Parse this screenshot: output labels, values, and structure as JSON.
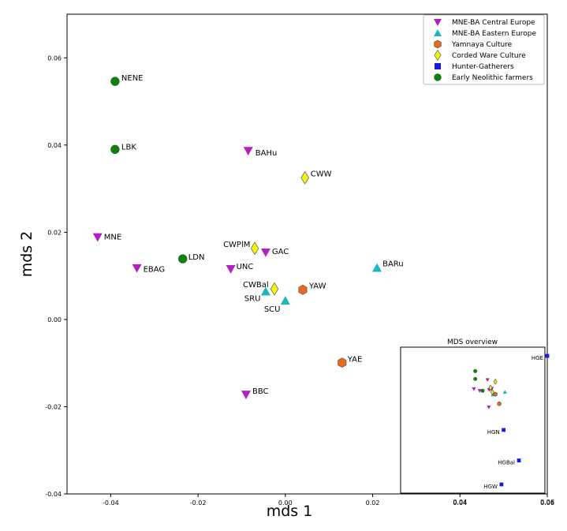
{
  "chart_data": {
    "type": "scatter",
    "xlabel": "mds 1",
    "ylabel": "mds 2",
    "xlim": [
      -0.05,
      0.06
    ],
    "ylim": [
      -0.04,
      0.07
    ],
    "xticks": [
      "-0.04",
      "-0.02",
      "0.00",
      "0.02",
      "0.04",
      "0.06"
    ],
    "xtick_values": [
      -0.04,
      -0.02,
      0.0,
      0.02,
      0.04,
      0.06
    ],
    "yticks": [
      "-0.04",
      "-0.02",
      "0.00",
      "0.02",
      "0.04",
      "0.06"
    ],
    "ytick_values": [
      -0.04,
      -0.02,
      0.0,
      0.02,
      0.04,
      0.06
    ],
    "grid": false,
    "legend_position": "top-right",
    "series": [
      {
        "name": "MNE-BA Central Europe",
        "marker": "triangle-down",
        "color": "#b41fbf",
        "points": [
          {
            "label": "BAHu",
            "x": -0.0085,
            "y": 0.0387
          },
          {
            "label": "MNE",
            "x": -0.043,
            "y": 0.0189
          },
          {
            "label": "EBAG",
            "x": -0.034,
            "y": 0.0118
          },
          {
            "label": "UNC",
            "x": -0.0125,
            "y": 0.0116
          },
          {
            "label": "GAC",
            "x": -0.0045,
            "y": 0.0154
          },
          {
            "label": "BBC",
            "x": -0.009,
            "y": -0.0172
          }
        ]
      },
      {
        "name": "MNE-BA Eastern Europe",
        "marker": "triangle-up",
        "color": "#1bb7bd",
        "points": [
          {
            "label": "BARu",
            "x": 0.021,
            "y": 0.0118
          },
          {
            "label": "SRU",
            "x": -0.0045,
            "y": 0.0064
          },
          {
            "label": "SCU",
            "x": 0.0,
            "y": 0.0043
          }
        ]
      },
      {
        "name": "Yamnaya Culture",
        "marker": "hexagon",
        "color": "#ea6a1a",
        "points": [
          {
            "label": "YAW",
            "x": 0.004,
            "y": 0.0068
          },
          {
            "label": "YAE",
            "x": 0.013,
            "y": -0.0099
          }
        ]
      },
      {
        "name": "Corded Ware Culture",
        "marker": "diamond",
        "color": "#f5f50a",
        "points": [
          {
            "label": "CWW",
            "x": 0.0045,
            "y": 0.0325
          },
          {
            "label": "CWPlM",
            "x": -0.007,
            "y": 0.0163
          },
          {
            "label": "CWBal",
            "x": -0.0025,
            "y": 0.007
          }
        ]
      },
      {
        "name": "Hunter-Gatherers",
        "marker": "square",
        "color": "#1717e6",
        "points": []
      },
      {
        "name": "Early Neolithic farmers",
        "marker": "circle",
        "color": "#137d13",
        "points": [
          {
            "label": "NENE",
            "x": -0.039,
            "y": 0.0546
          },
          {
            "label": "LBK",
            "x": -0.039,
            "y": 0.039
          },
          {
            "label": "LDN",
            "x": -0.0235,
            "y": 0.0139
          }
        ]
      }
    ],
    "inset": {
      "title": "MDS overview",
      "xticks": [
        "0.04",
        "0.06"
      ],
      "xtick_values": [
        0.04,
        0.06
      ],
      "points": [
        {
          "label": "HGE",
          "x": 0.06,
          "y": -0.0085,
          "series": "Hunter-Gatherers"
        },
        {
          "label": "HGN",
          "x": 0.05,
          "y": -0.0255,
          "series": "Hunter-Gatherers"
        },
        {
          "label": "HGBal",
          "x": 0.0535,
          "y": -0.0325,
          "series": "Hunter-Gatherers"
        },
        {
          "label": "HGW",
          "x": 0.0495,
          "y": -0.038,
          "series": "Hunter-Gatherers"
        }
      ],
      "cluster": [
        {
          "x": 0.0435,
          "y": -0.012,
          "series": "Early Neolithic farmers"
        },
        {
          "x": 0.0435,
          "y": -0.0138,
          "series": "Early Neolithic farmers"
        },
        {
          "x": 0.0452,
          "y": -0.0165,
          "series": "Early Neolithic farmers"
        },
        {
          "x": 0.0432,
          "y": -0.0161,
          "series": "MNE-BA Central Europe"
        },
        {
          "x": 0.0445,
          "y": -0.0165,
          "series": "MNE-BA Central Europe"
        },
        {
          "x": 0.0463,
          "y": -0.014,
          "series": "MNE-BA Central Europe"
        },
        {
          "x": 0.0467,
          "y": -0.0163,
          "series": "MNE-BA Central Europe"
        },
        {
          "x": 0.0473,
          "y": -0.016,
          "series": "MNE-BA Central Europe"
        },
        {
          "x": 0.0466,
          "y": -0.0203,
          "series": "MNE-BA Central Europe"
        },
        {
          "x": 0.0503,
          "y": -0.0168,
          "series": "MNE-BA Eastern Europe"
        },
        {
          "x": 0.0475,
          "y": -0.0174,
          "series": "MNE-BA Eastern Europe"
        },
        {
          "x": 0.048,
          "y": -0.0172,
          "series": "MNE-BA Eastern Europe"
        },
        {
          "x": 0.049,
          "y": -0.0195,
          "series": "Yamnaya Culture"
        },
        {
          "x": 0.0481,
          "y": -0.0173,
          "series": "Yamnaya Culture"
        },
        {
          "x": 0.0481,
          "y": -0.0144,
          "series": "Corded Ware Culture"
        },
        {
          "x": 0.047,
          "y": -0.0158,
          "series": "Corded Ware Culture"
        },
        {
          "x": 0.0474,
          "y": -0.0168,
          "series": "Corded Ware Culture"
        }
      ]
    }
  }
}
